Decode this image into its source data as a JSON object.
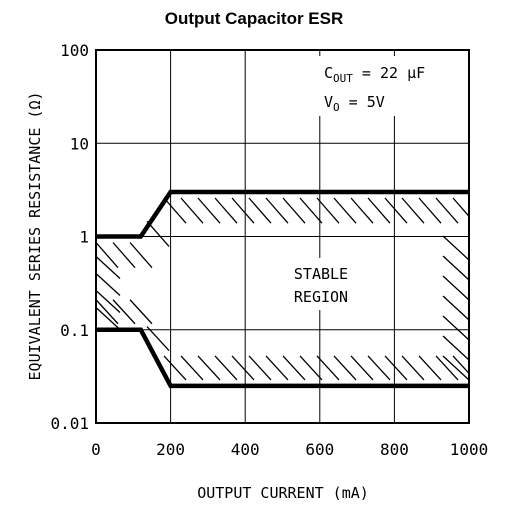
{
  "chart_data": {
    "type": "line",
    "title": "Output Capacitor ESR",
    "xlabel": "OUTPUT CURRENT (mA)",
    "ylabel": "EQUIVALENT SERIES RESISTANCE (Ω)",
    "xlim": [
      0,
      1000
    ],
    "ylim": [
      0.01,
      100
    ],
    "yscale": "log",
    "grid": true,
    "x_ticks": [
      "0",
      "200",
      "400",
      "600",
      "800",
      "1000"
    ],
    "y_ticks": [
      "0.01",
      "0.1",
      "1",
      "10",
      "100"
    ],
    "series": [
      {
        "x": [
          0,
          120,
          200,
          1000
        ],
        "values": [
          1,
          1,
          3,
          3
        ]
      },
      {
        "x": [
          0,
          120,
          200,
          1000
        ],
        "values": [
          0.1,
          0.1,
          0.025,
          0.025
        ]
      }
    ],
    "region_label": [
      "STABLE",
      "REGION"
    ],
    "annotation": {
      "cout_main": "C",
      "cout_sub": "OUT",
      "cout_rest": " = 22 μF",
      "vo_main": "V",
      "vo_sub": "O",
      "vo_rest": " = 5V"
    }
  }
}
